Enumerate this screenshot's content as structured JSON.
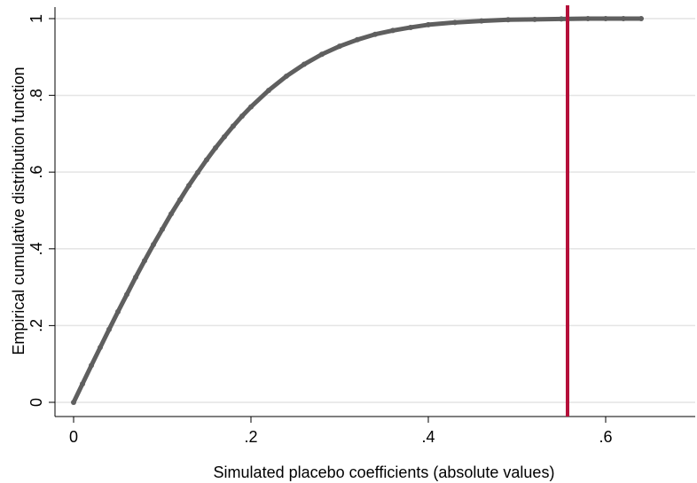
{
  "chart_data": {
    "type": "scatter",
    "xlabel": "Simulated placebo coefficients (absolute values)",
    "ylabel": "Empirical cumulative distribution function",
    "x": [
      0,
      0.01,
      0.02,
      0.03,
      0.04,
      0.05,
      0.06,
      0.07,
      0.08,
      0.09,
      0.1,
      0.11,
      0.12,
      0.13,
      0.14,
      0.15,
      0.16,
      0.17,
      0.18,
      0.19,
      0.2,
      0.22,
      0.24,
      0.26,
      0.28,
      0.3,
      0.32,
      0.34,
      0.36,
      0.38,
      0.4,
      0.43,
      0.46,
      0.49,
      0.52,
      0.55,
      0.58,
      0.6,
      0.62,
      0.64
    ],
    "values": [
      0,
      0.048,
      0.096,
      0.143,
      0.19,
      0.236,
      0.281,
      0.326,
      0.369,
      0.411,
      0.451,
      0.491,
      0.528,
      0.565,
      0.599,
      0.632,
      0.663,
      0.692,
      0.72,
      0.746,
      0.77,
      0.813,
      0.85,
      0.881,
      0.907,
      0.928,
      0.945,
      0.959,
      0.969,
      0.977,
      0.984,
      0.99,
      0.994,
      0.997,
      0.998,
      0.999,
      1,
      1,
      1,
      1
    ],
    "color": "#5f5f5f",
    "vline": 0.557,
    "vline_color": "#b5103a",
    "xlim": [
      -0.021,
      0.701
    ],
    "ylim": [
      -0.037,
      1.03
    ],
    "xticks": [
      0,
      {
        "value": 0.2,
        "label": ".2"
      },
      {
        "value": 0.4,
        "label": ".4"
      },
      {
        "value": 0.6,
        "label": ".6"
      }
    ],
    "yticks": [
      0,
      {
        "value": 0.2,
        "label": ".2"
      },
      {
        "value": 0.4,
        "label": ".4"
      },
      {
        "value": 0.6,
        "label": ".6"
      },
      {
        "value": 0.8,
        "label": ".8"
      },
      1
    ],
    "grid": true
  }
}
